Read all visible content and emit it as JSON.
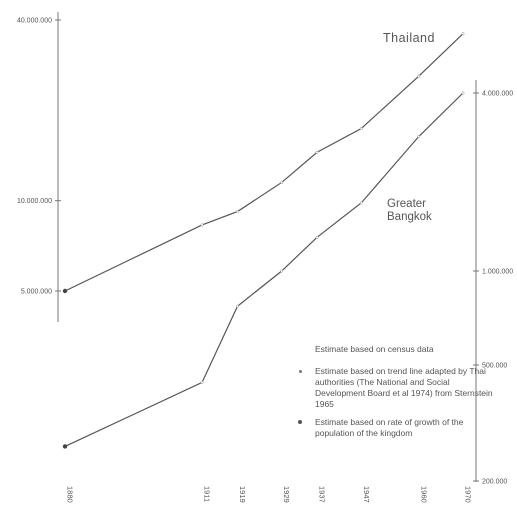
{
  "chart_data": {
    "type": "line",
    "x_ticks": [
      "1880",
      "1911",
      "1919",
      "1929",
      "1937",
      "1947",
      "1960",
      "1970"
    ],
    "y_left_ticks": [
      "40.000.000",
      "10.000.000",
      "5.000.000"
    ],
    "y_right_ticks": [
      "4.000.000",
      "1.000.000",
      "500.000",
      "200.000"
    ],
    "y_left_scale": "log",
    "y_right_scale": "log",
    "series": [
      {
        "name": "Thailand",
        "axis": "left",
        "x": [
          1880,
          1911,
          1919,
          1929,
          1937,
          1947,
          1960,
          1970
        ],
        "y": [
          5000000,
          8300000,
          9200000,
          11500000,
          14500000,
          17400000,
          26000000,
          36000000
        ]
      },
      {
        "name": "Greater Bangkok",
        "axis": "right",
        "x": [
          1880,
          1911,
          1919,
          1929,
          1937,
          1947,
          1960,
          1970
        ],
        "y": [
          255000,
          420000,
          760000,
          1000000,
          1300000,
          1700000,
          2850000,
          4000000
        ]
      }
    ],
    "series_labels": [
      "Thailand",
      "Greater\nBangkok"
    ],
    "legend": {
      "heading": "Estimate based on census data",
      "items": [
        "Estimate based on trend line adapted by Thai authorities (The National and Social Development Board et al 1974) from Sternstein 1965",
        "Estimate based on rate of growth of the population of the kingdom"
      ]
    },
    "legend_placement": "bottom-right",
    "grid": false
  },
  "colors": {
    "line": "#555555",
    "text": "#555555"
  }
}
